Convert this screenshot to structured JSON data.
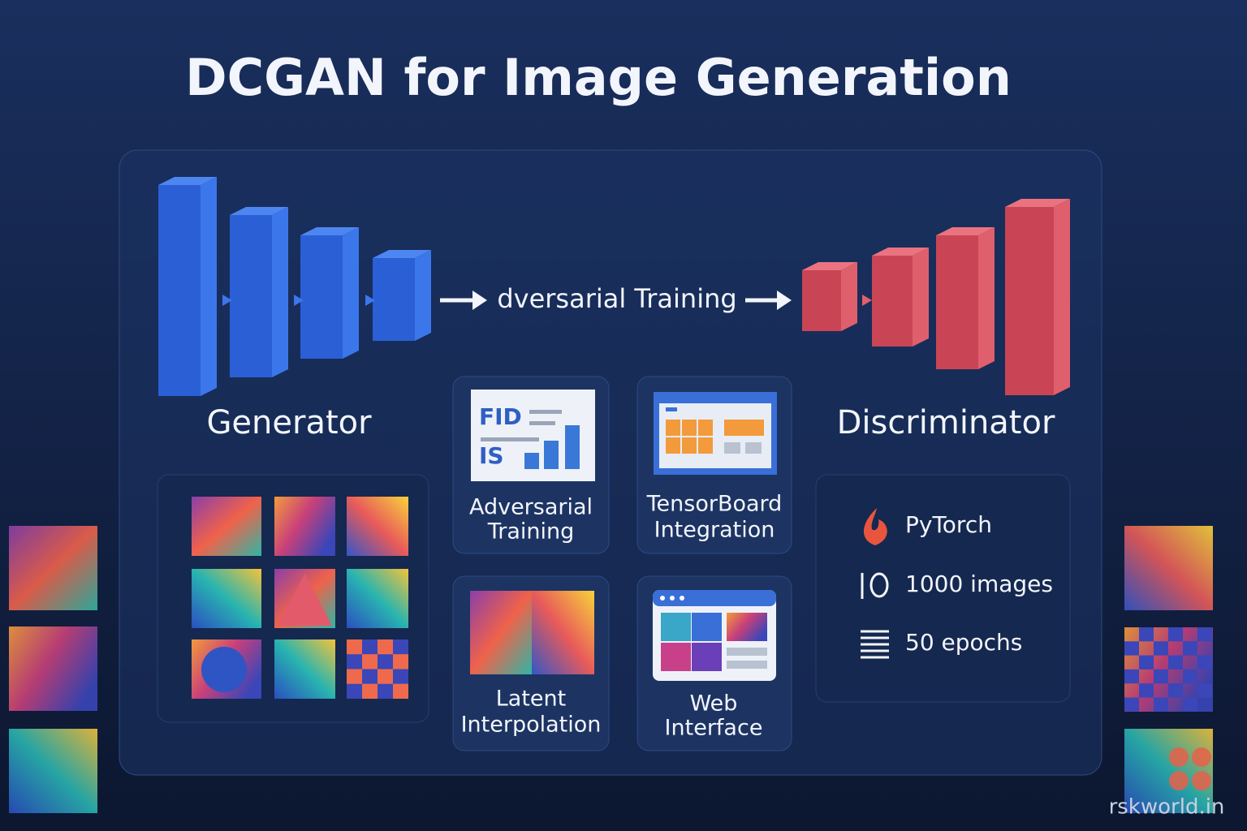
{
  "header": {
    "title": "DCGAN for Image Generation"
  },
  "flow": {
    "generator": "Generator",
    "link": "dversarial Training",
    "discriminator": "Discriminator"
  },
  "features": [
    {
      "label": [
        "Adversarial",
        "Training"
      ],
      "icon_text": [
        "FID",
        "IS"
      ]
    },
    {
      "label": [
        "TensorBoard",
        "Integration"
      ]
    },
    {
      "label": [
        "Latent",
        "Interpolation"
      ]
    },
    {
      "label": [
        "Web",
        "Interface"
      ]
    }
  ],
  "stats": [
    "PyTorch",
    "1000 images",
    "50 epochs"
  ],
  "watermark": "rskworld.in"
}
